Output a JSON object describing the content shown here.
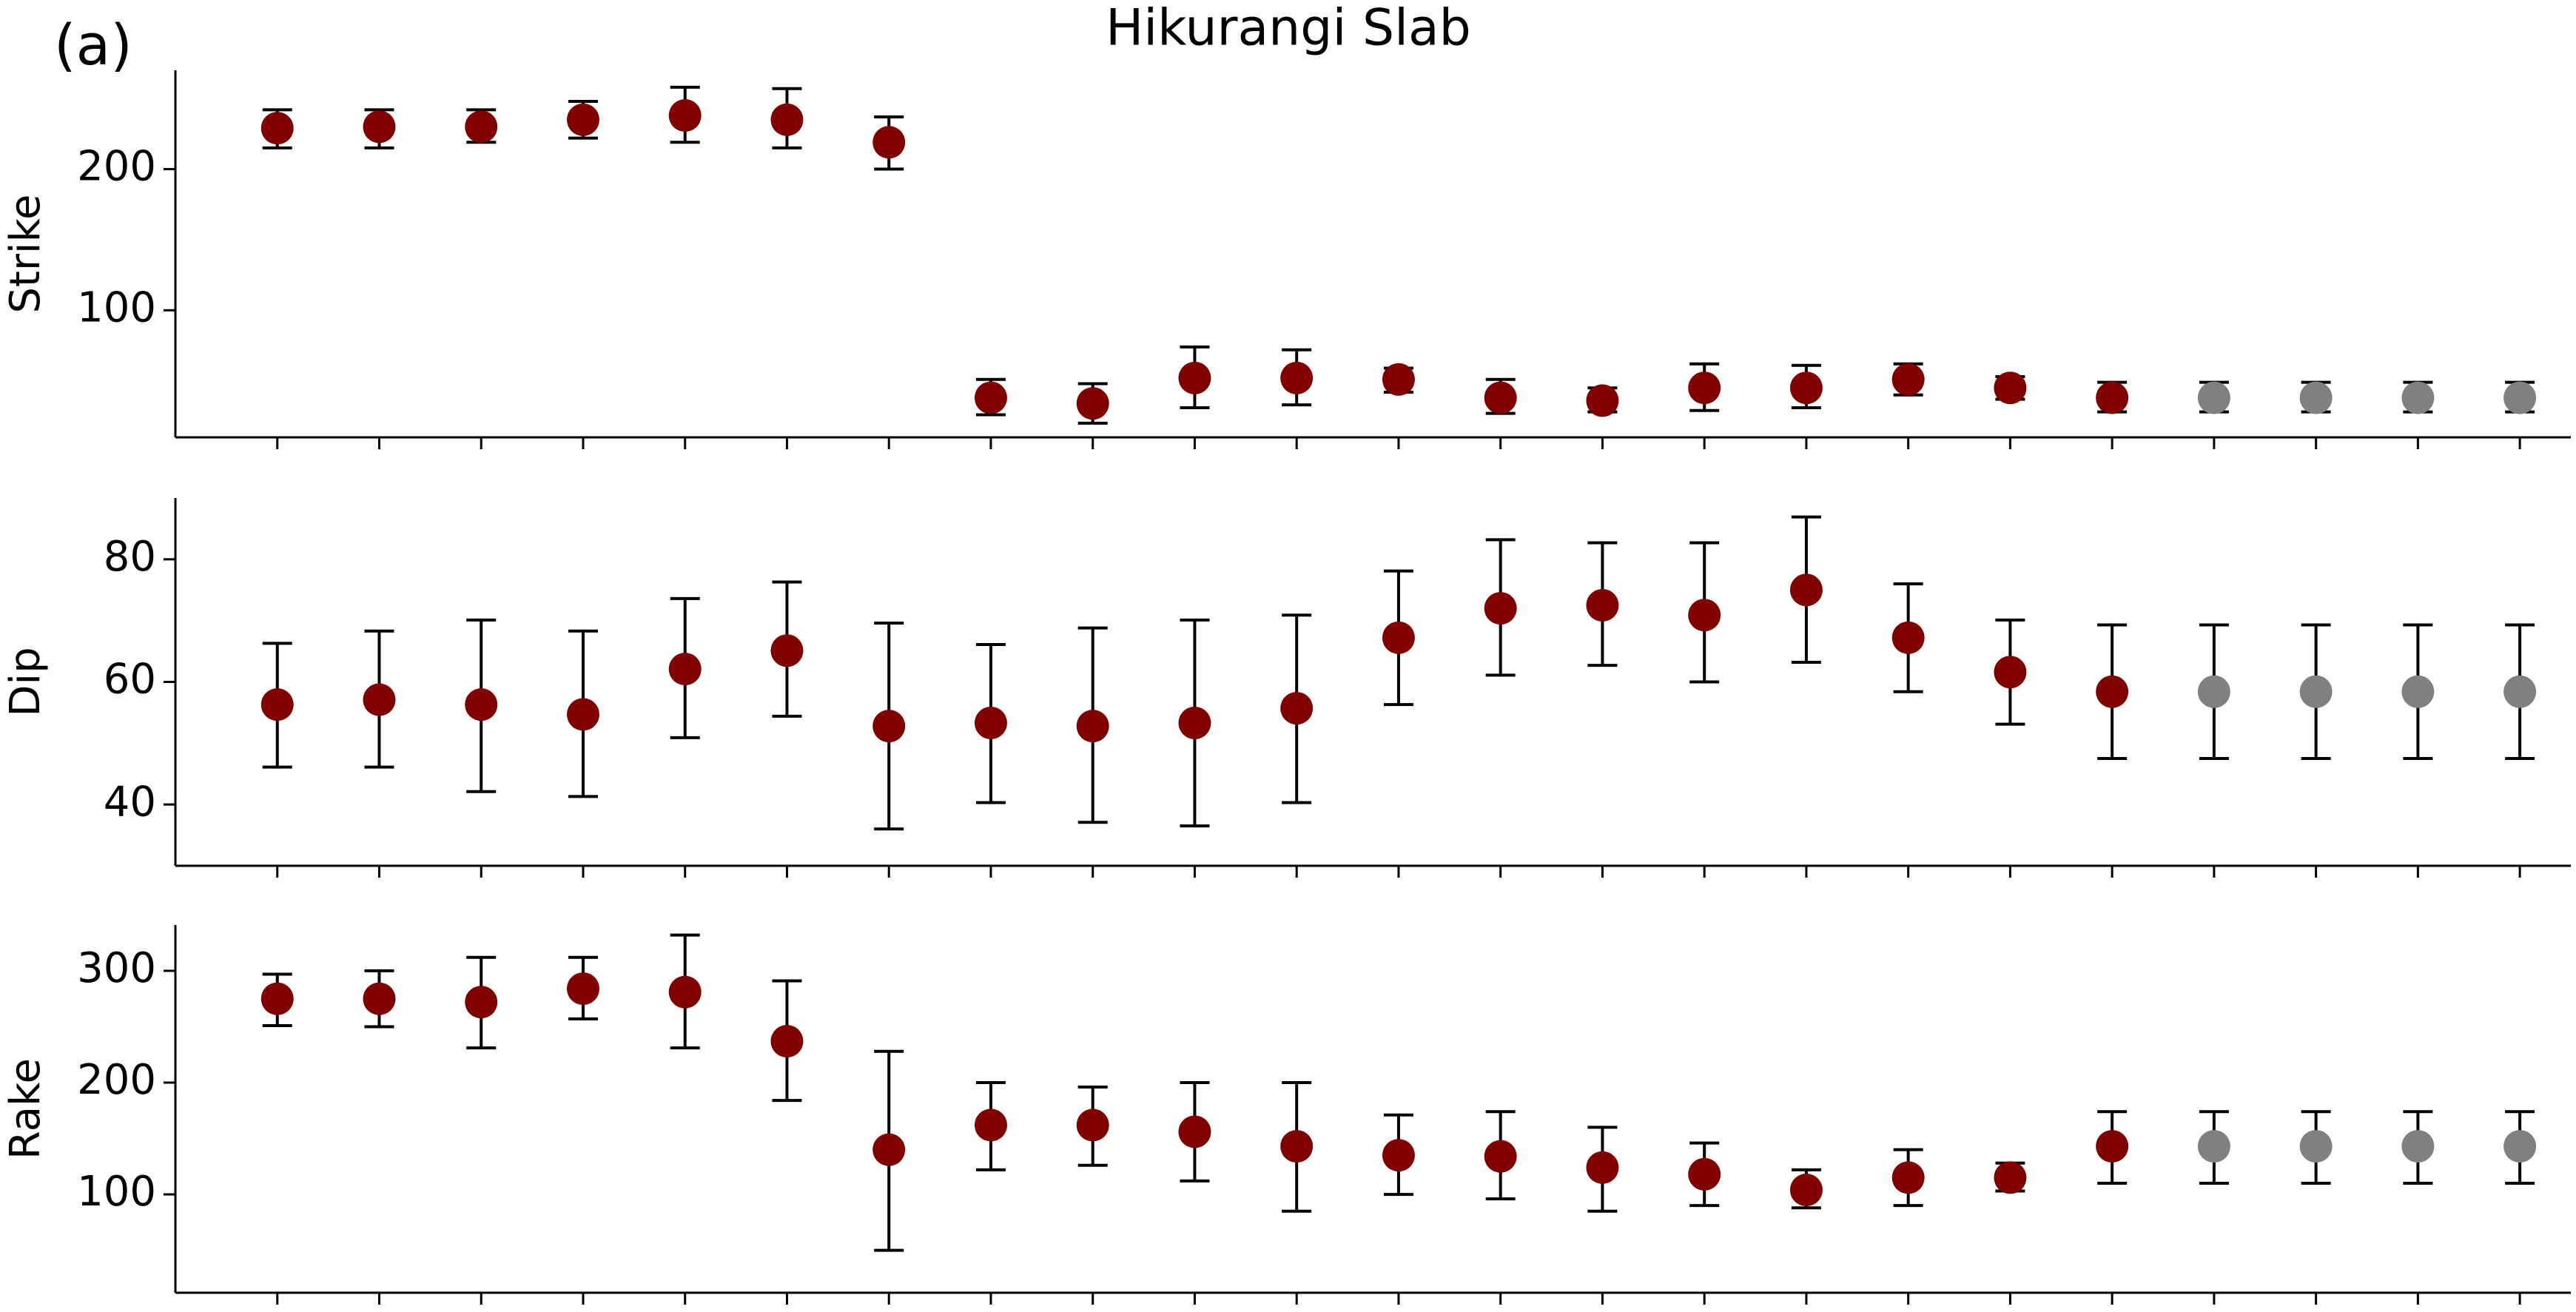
{
  "panel_label": "(a)",
  "title": "Hikurangi Slab",
  "chart_data": [
    {
      "type": "errorbar",
      "ylabel": "Strike",
      "categories": [
        null,
        null,
        null,
        null,
        null,
        null,
        null,
        null,
        null,
        null,
        null,
        null,
        null,
        null,
        null,
        null,
        null,
        null,
        null,
        null,
        null,
        null,
        null
      ],
      "values": [
        229,
        230,
        230,
        235,
        238,
        235,
        219,
        38,
        34,
        52,
        52,
        51,
        38,
        36,
        45,
        45,
        51,
        45,
        38,
        38,
        38,
        38,
        38
      ],
      "lower": [
        215,
        215,
        219,
        222,
        219,
        215,
        200,
        26,
        20,
        31,
        33,
        42,
        27,
        28,
        29,
        31,
        40,
        37,
        28,
        28,
        28,
        28,
        28
      ],
      "upper": [
        242,
        242,
        242,
        248,
        258,
        257,
        237,
        51,
        48,
        74,
        72,
        59,
        51,
        45,
        62,
        61,
        62,
        53,
        49,
        49,
        49,
        49,
        49
      ],
      "colors": [
        "#800000",
        "#800000",
        "#800000",
        "#800000",
        "#800000",
        "#800000",
        "#800000",
        "#800000",
        "#800000",
        "#800000",
        "#800000",
        "#800000",
        "#800000",
        "#800000",
        "#800000",
        "#800000",
        "#800000",
        "#800000",
        "#800000",
        "#808080",
        "#808080",
        "#808080",
        "#808080"
      ],
      "ylim": [
        10,
        270
      ],
      "yticks": [
        100,
        200
      ]
    },
    {
      "type": "errorbar",
      "ylabel": "Dip",
      "categories": [
        null,
        null,
        null,
        null,
        null,
        null,
        null,
        null,
        null,
        null,
        null,
        null,
        null,
        null,
        null,
        null,
        null,
        null,
        null,
        null,
        null,
        null,
        null
      ],
      "values": [
        56.3,
        57.1,
        56.3,
        54.7,
        62.1,
        65.1,
        52.8,
        53.3,
        52.8,
        53.3,
        55.7,
        67.2,
        72,
        72.5,
        70.9,
        75,
        67.2,
        61.6,
        58.4,
        58.4,
        58.4,
        58.4,
        58.4
      ],
      "lower": [
        46.1,
        46.1,
        42.1,
        41.3,
        50.9,
        54.4,
        36,
        40.3,
        37.1,
        36.5,
        40.3,
        56.3,
        61.1,
        62.7,
        60,
        63.2,
        58.4,
        53.1,
        47.5,
        47.5,
        47.5,
        47.5,
        47.5
      ],
      "upper": [
        66.3,
        68.3,
        70.1,
        68.3,
        73.6,
        76.3,
        69.6,
        66.1,
        68.8,
        70.1,
        70.9,
        78.1,
        83.2,
        82.7,
        82.7,
        86.9,
        76,
        70.1,
        69.3,
        69.3,
        69.3,
        69.3,
        69.3
      ],
      "colors": [
        "#800000",
        "#800000",
        "#800000",
        "#800000",
        "#800000",
        "#800000",
        "#800000",
        "#800000",
        "#800000",
        "#800000",
        "#800000",
        "#800000",
        "#800000",
        "#800000",
        "#800000",
        "#800000",
        "#800000",
        "#800000",
        "#800000",
        "#808080",
        "#808080",
        "#808080",
        "#808080"
      ],
      "ylim": [
        30,
        90
      ],
      "yticks": [
        40,
        60,
        80
      ]
    },
    {
      "type": "errorbar",
      "ylabel": "Rake",
      "categories": [
        null,
        null,
        null,
        null,
        null,
        null,
        null,
        null,
        null,
        null,
        null,
        null,
        null,
        null,
        null,
        null,
        null,
        null,
        null,
        null,
        null,
        null,
        null
      ],
      "values": [
        275,
        275,
        272,
        284,
        281,
        237,
        140,
        162,
        162,
        156,
        143,
        135,
        134,
        124,
        118,
        104,
        115,
        115,
        143,
        143,
        143,
        143,
        143
      ],
      "lower": [
        251,
        250,
        231,
        257,
        231,
        184,
        50,
        122,
        126,
        112,
        85,
        100,
        96,
        85,
        90,
        88,
        90,
        103,
        110,
        110,
        110,
        110,
        110
      ],
      "upper": [
        297,
        300,
        312,
        312,
        332,
        291,
        228,
        200,
        196,
        200,
        200,
        171,
        174,
        160,
        146,
        122,
        140,
        128,
        174,
        174,
        174,
        174,
        174
      ],
      "colors": [
        "#800000",
        "#800000",
        "#800000",
        "#800000",
        "#800000",
        "#800000",
        "#800000",
        "#800000",
        "#800000",
        "#800000",
        "#800000",
        "#800000",
        "#800000",
        "#800000",
        "#800000",
        "#800000",
        "#800000",
        "#800000",
        "#800000",
        "#808080",
        "#808080",
        "#808080",
        "#808080"
      ],
      "ylim": [
        12,
        341
      ],
      "yticks": [
        100,
        200,
        300
      ]
    }
  ]
}
